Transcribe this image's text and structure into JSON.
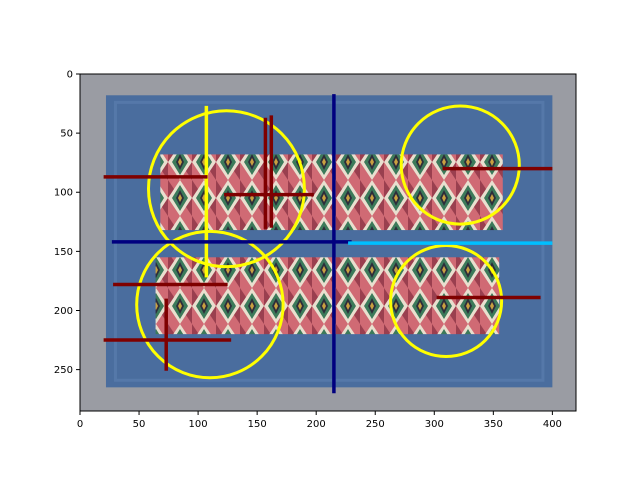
{
  "chart_data": {
    "type": "scatter",
    "title": "",
    "xlabel": "",
    "ylabel": "",
    "xlim": [
      0,
      420
    ],
    "ylim": [
      285,
      0
    ],
    "y_inverted": true,
    "grid": false,
    "x_ticks": [
      0,
      50,
      100,
      150,
      200,
      250,
      300,
      350,
      400
    ],
    "y_ticks": [
      0,
      50,
      100,
      150,
      200,
      250
    ],
    "background_image": {
      "subject": "blue woven textile with two bands of colorful diamond-pattern embroidery",
      "extent": [
        22,
        400,
        18,
        265
      ],
      "cloth_color": "#4a6d9e",
      "band_colors": [
        "#d06a74",
        "#e9dfcf",
        "#3c7a5a",
        "#2d2d3a",
        "#c9a040",
        "#9a3f4f"
      ]
    },
    "circles": [
      {
        "cx": 124,
        "cy": 97,
        "r": 66,
        "color": "#ffff00"
      },
      {
        "cx": 110,
        "cy": 195,
        "r": 62,
        "color": "#ffff00"
      },
      {
        "cx": 322,
        "cy": 77,
        "r": 50,
        "color": "#ffff00"
      },
      {
        "cx": 310,
        "cy": 192,
        "r": 47,
        "color": "#ffff00"
      }
    ],
    "segments": [
      {
        "x1": 107,
        "y1": 27,
        "x2": 107,
        "y2": 172,
        "color": "#ffff00"
      },
      {
        "x1": 215,
        "y1": 17,
        "x2": 215,
        "y2": 270,
        "color": "#00007f"
      },
      {
        "x1": 27,
        "y1": 142,
        "x2": 230,
        "y2": 142,
        "color": "#00007f"
      },
      {
        "x1": 227,
        "y1": 143,
        "x2": 400,
        "y2": 143,
        "color": "#00bfff"
      },
      {
        "x1": 20,
        "y1": 87,
        "x2": 108,
        "y2": 87,
        "color": "#7f0000"
      },
      {
        "x1": 122,
        "y1": 102,
        "x2": 198,
        "y2": 102,
        "color": "#7f0000"
      },
      {
        "x1": 157,
        "y1": 37,
        "x2": 157,
        "y2": 131,
        "color": "#7f0000"
      },
      {
        "x1": 162,
        "y1": 35,
        "x2": 162,
        "y2": 130,
        "color": "#7f0000"
      },
      {
        "x1": 307,
        "y1": 80,
        "x2": 400,
        "y2": 80,
        "color": "#7f0000"
      },
      {
        "x1": 28,
        "y1": 178,
        "x2": 125,
        "y2": 178,
        "color": "#7f0000"
      },
      {
        "x1": 20,
        "y1": 225,
        "x2": 128,
        "y2": 225,
        "color": "#7f0000"
      },
      {
        "x1": 73,
        "y1": 190,
        "x2": 73,
        "y2": 251,
        "color": "#7f0000"
      },
      {
        "x1": 302,
        "y1": 189,
        "x2": 390,
        "y2": 189,
        "color": "#7f0000"
      }
    ]
  }
}
